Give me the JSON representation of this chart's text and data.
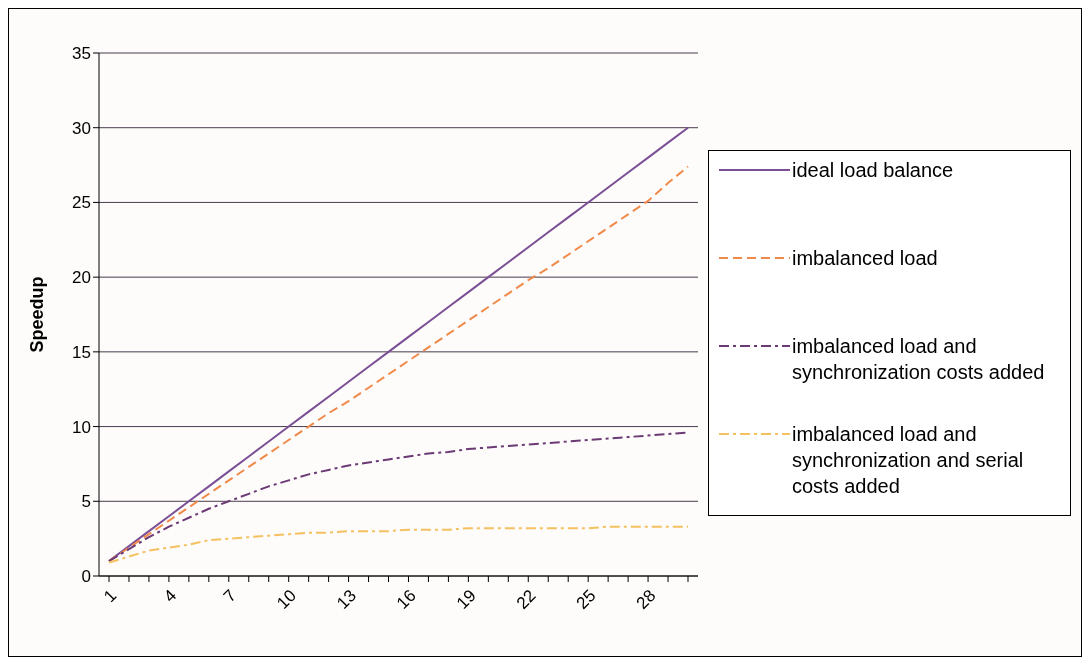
{
  "chart_data": {
    "type": "line",
    "ylabel": "Speedup",
    "categories": [
      "1",
      null,
      null,
      "4",
      null,
      null,
      "7",
      null,
      null,
      "10",
      null,
      null,
      "13",
      null,
      null,
      "16",
      null,
      null,
      "19",
      null,
      null,
      "22",
      null,
      null,
      "25",
      null,
      null,
      "28",
      null,
      null
    ],
    "series": [
      {
        "name": "ideal load balance",
        "color": "#7b4f96",
        "line_style": "solid",
        "values": [
          1,
          2,
          3,
          4,
          5,
          6,
          7,
          8,
          9,
          10,
          11,
          12,
          13,
          14,
          15,
          16,
          17,
          18,
          19,
          20,
          21,
          22,
          23,
          24,
          25,
          26,
          27,
          28,
          29,
          30
        ]
      },
      {
        "name": "imbalanced load",
        "color": "#f08a4b",
        "line_style": "dashed",
        "values": [
          1,
          1.9,
          2.8,
          3.7,
          4.6,
          5.5,
          6.4,
          7.3,
          8.2,
          9.1,
          10,
          10.9,
          11.7,
          12.6,
          13.5,
          14.4,
          15.3,
          16.2,
          17.1,
          18,
          18.9,
          19.8,
          20.6,
          21.5,
          22.4,
          23.3,
          24.2,
          25.1,
          26.3,
          27.4
        ]
      },
      {
        "name": "imbalanced load and synchronization costs added",
        "color": "#6b3a75",
        "line_style": "dashdot",
        "values": [
          1,
          1.8,
          2.6,
          3.3,
          3.9,
          4.5,
          5,
          5.5,
          6,
          6.4,
          6.8,
          7.1,
          7.4,
          7.6,
          7.8,
          8,
          8.2,
          8.3,
          8.5,
          8.6,
          8.7,
          8.8,
          8.9,
          9,
          9.1,
          9.2,
          9.3,
          9.4,
          9.5,
          9.6
        ]
      },
      {
        "name": "imbalanced load and synchronization and serial costs added",
        "color": "#f5c060",
        "line_style": "dashdot",
        "values": [
          0.9,
          1.3,
          1.7,
          1.9,
          2.1,
          2.4,
          2.5,
          2.6,
          2.7,
          2.8,
          2.9,
          2.9,
          3,
          3,
          3,
          3.1,
          3.1,
          3.1,
          3.2,
          3.2,
          3.2,
          3.2,
          3.2,
          3.2,
          3.2,
          3.3,
          3.3,
          3.3,
          3.3,
          3.3
        ]
      }
    ],
    "ylim": [
      0,
      35
    ],
    "yticks": [
      0,
      5,
      10,
      15,
      20,
      25,
      30,
      35
    ],
    "grid": "y",
    "legend": "right",
    "marker": "none"
  }
}
